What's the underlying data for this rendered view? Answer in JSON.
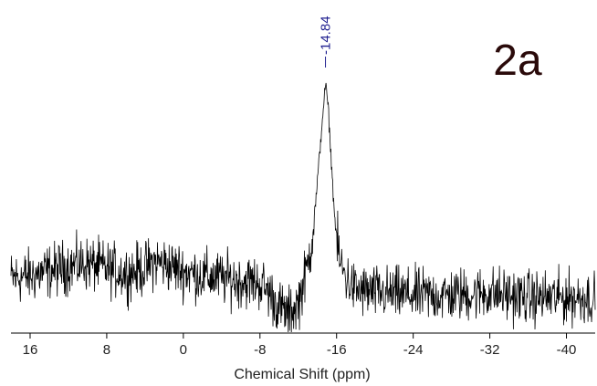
{
  "chart_data": {
    "type": "line",
    "title": "",
    "panel_label": "2a",
    "xlabel": "Chemical Shift (ppm)",
    "ylabel": "",
    "xlim": [
      18,
      -43
    ],
    "x_reversed": true,
    "xticks": [
      16,
      8,
      0,
      -8,
      -16,
      -24,
      -32,
      -40
    ],
    "ylim": [
      0,
      1
    ],
    "grid": false,
    "legend": "none",
    "line_color": "#000000",
    "peak_annotation": {
      "x": -14.84,
      "label": "-14.84",
      "color": "#1f1f8f"
    },
    "series": [
      {
        "x": [
          18,
          16,
          14,
          12,
          10,
          8,
          6,
          4,
          3,
          2,
          0,
          -2,
          -4,
          -6,
          -8,
          -9,
          -10,
          -11,
          -12,
          -12.8,
          -13.4,
          -13.9,
          -14.3,
          -14.6,
          -14.84,
          -15.1,
          -15.4,
          -15.8,
          -16.3,
          -17,
          -18,
          -20,
          -24,
          -28,
          -32,
          -36,
          -40,
          -43
        ],
        "values": [
          0.2,
          0.21,
          0.23,
          0.25,
          0.26,
          0.24,
          0.22,
          0.24,
          0.27,
          0.26,
          0.23,
          0.21,
          0.2,
          0.19,
          0.18,
          0.14,
          0.08,
          0.05,
          0.1,
          0.22,
          0.35,
          0.55,
          0.75,
          0.9,
          1.0,
          0.92,
          0.72,
          0.45,
          0.27,
          0.2,
          0.15,
          0.14,
          0.13,
          0.13,
          0.14,
          0.12,
          0.12,
          0.12
        ]
      }
    ]
  }
}
